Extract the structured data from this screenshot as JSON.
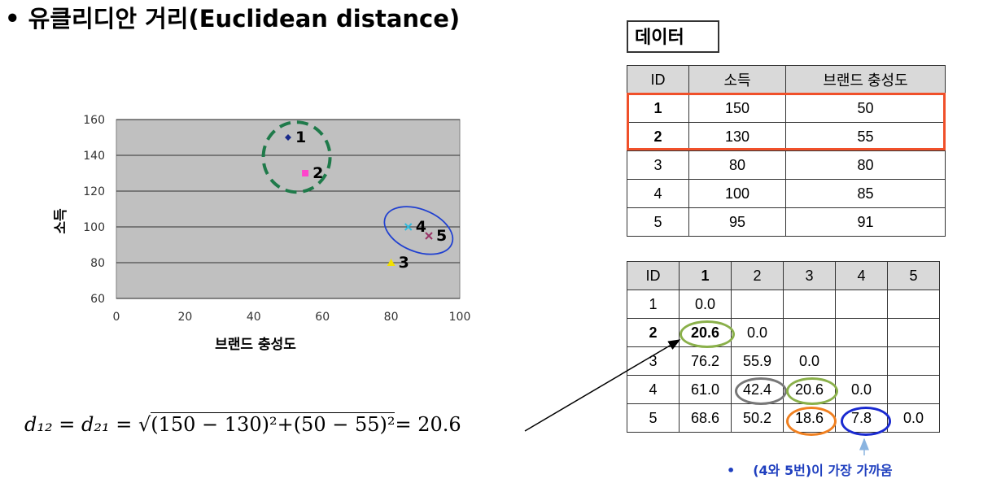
{
  "title": "• 유클리디안 거리(Euclidean distance)",
  "data_label": "데이터",
  "data_table": {
    "headers": [
      "ID",
      "소득",
      "브랜드 충성도"
    ],
    "rows": [
      [
        "1",
        "150",
        "50"
      ],
      [
        "2",
        "130",
        "55"
      ],
      [
        "3",
        "80",
        "80"
      ],
      [
        "4",
        "100",
        "85"
      ],
      [
        "5",
        "95",
        "91"
      ]
    ]
  },
  "distance_table": {
    "headers": [
      "ID",
      "1",
      "2",
      "3",
      "4",
      "5"
    ],
    "rows": [
      [
        "1",
        "0.0",
        "",
        "",
        "",
        ""
      ],
      [
        "2",
        "20.6",
        "0.0",
        "",
        "",
        ""
      ],
      [
        "3",
        "76.2",
        "55.9",
        "0.0",
        "",
        ""
      ],
      [
        "4",
        "61.0",
        "42.4",
        "20.6",
        "0.0",
        ""
      ],
      [
        "5",
        "68.6",
        "50.2",
        "18.6",
        "7.8",
        "0.0"
      ]
    ]
  },
  "formula": {
    "lhs": "d₁₂ = d₂₁ = √",
    "expr": "(150 − 130)²+(50 − 55)²",
    "result": "= 20.6"
  },
  "note": {
    "bullet": "•",
    "text": "(4와 5번)이 가장 가까움"
  },
  "chart_data": {
    "type": "scatter",
    "xlabel": "브랜드 충성도",
    "ylabel": "소득",
    "xlim": [
      0,
      100
    ],
    "ylim": [
      60,
      160
    ],
    "xticks": [
      0,
      20,
      40,
      60,
      80,
      100
    ],
    "yticks": [
      60,
      80,
      100,
      120,
      140,
      160
    ],
    "grid": "horizontal",
    "points": [
      {
        "label": "1",
        "x": 50,
        "y": 150,
        "marker": "diamond",
        "color": "#1a2a8a"
      },
      {
        "label": "2",
        "x": 55,
        "y": 130,
        "marker": "square",
        "color": "#ff44cc"
      },
      {
        "label": "3",
        "x": 80,
        "y": 80,
        "marker": "triangle",
        "color": "#f2e000"
      },
      {
        "label": "4",
        "x": 85,
        "y": 100,
        "marker": "x",
        "color": "#33bbdd"
      },
      {
        "label": "5",
        "x": 91,
        "y": 95,
        "marker": "x",
        "color": "#993366"
      }
    ],
    "colors": {
      "plot_bg": "#c0c0c0",
      "cluster_green": "#1f7a4a",
      "cluster_blue": "#2040d0"
    }
  }
}
